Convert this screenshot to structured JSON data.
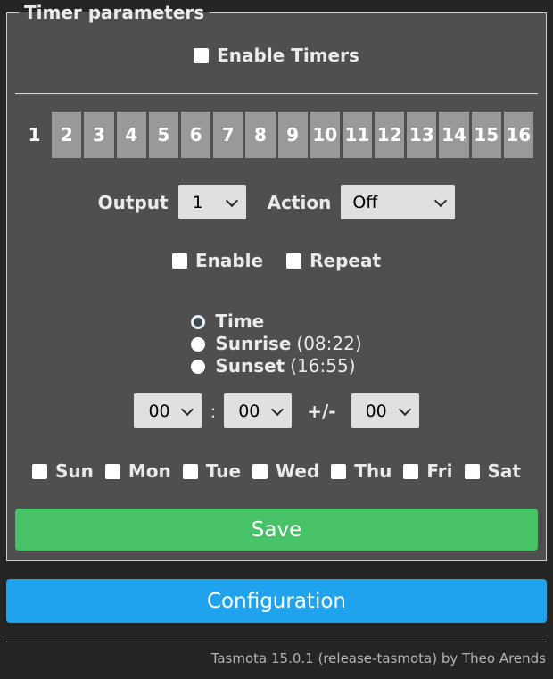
{
  "fieldset": {
    "legend": "Timer parameters"
  },
  "enable_timers": {
    "label": "Enable Timers",
    "checked": false
  },
  "timer_tabs": {
    "active": "1",
    "items": [
      "1",
      "2",
      "3",
      "4",
      "5",
      "6",
      "7",
      "8",
      "9",
      "10",
      "11",
      "12",
      "13",
      "14",
      "15",
      "16"
    ]
  },
  "output": {
    "label": "Output",
    "value": "1"
  },
  "action": {
    "label": "Action",
    "value": "Off"
  },
  "flags": {
    "enable": {
      "label": "Enable",
      "checked": false
    },
    "repeat": {
      "label": "Repeat",
      "checked": false
    }
  },
  "schedule": {
    "options": [
      {
        "label": "Time",
        "detail": "",
        "selected": true
      },
      {
        "label": "Sunrise",
        "detail": "(08:22)",
        "selected": false
      },
      {
        "label": "Sunset",
        "detail": "(16:55)",
        "selected": false
      }
    ]
  },
  "time": {
    "hour": "00",
    "colon": ":",
    "minute": "00",
    "window_label": "+/-",
    "window": "00"
  },
  "days": {
    "items": [
      {
        "label": "Sun",
        "checked": false
      },
      {
        "label": "Mon",
        "checked": false
      },
      {
        "label": "Tue",
        "checked": false
      },
      {
        "label": "Wed",
        "checked": false
      },
      {
        "label": "Thu",
        "checked": false
      },
      {
        "label": "Fri",
        "checked": false
      },
      {
        "label": "Sat",
        "checked": false
      }
    ]
  },
  "save_button": {
    "label": "Save"
  },
  "configuration_button": {
    "label": "Configuration"
  },
  "footer": {
    "text": "Tasmota 15.0.1 (release-tasmota) by Theo Arends"
  },
  "colors": {
    "page_background": "#252525",
    "form_background": "#4f4f4f",
    "text": "#eaeaea",
    "tab_background": "#999999",
    "input_background": "#e0e0e0",
    "input_text": "#000000",
    "save_button": "#47c266",
    "menu_button": "#1fa3ec"
  }
}
